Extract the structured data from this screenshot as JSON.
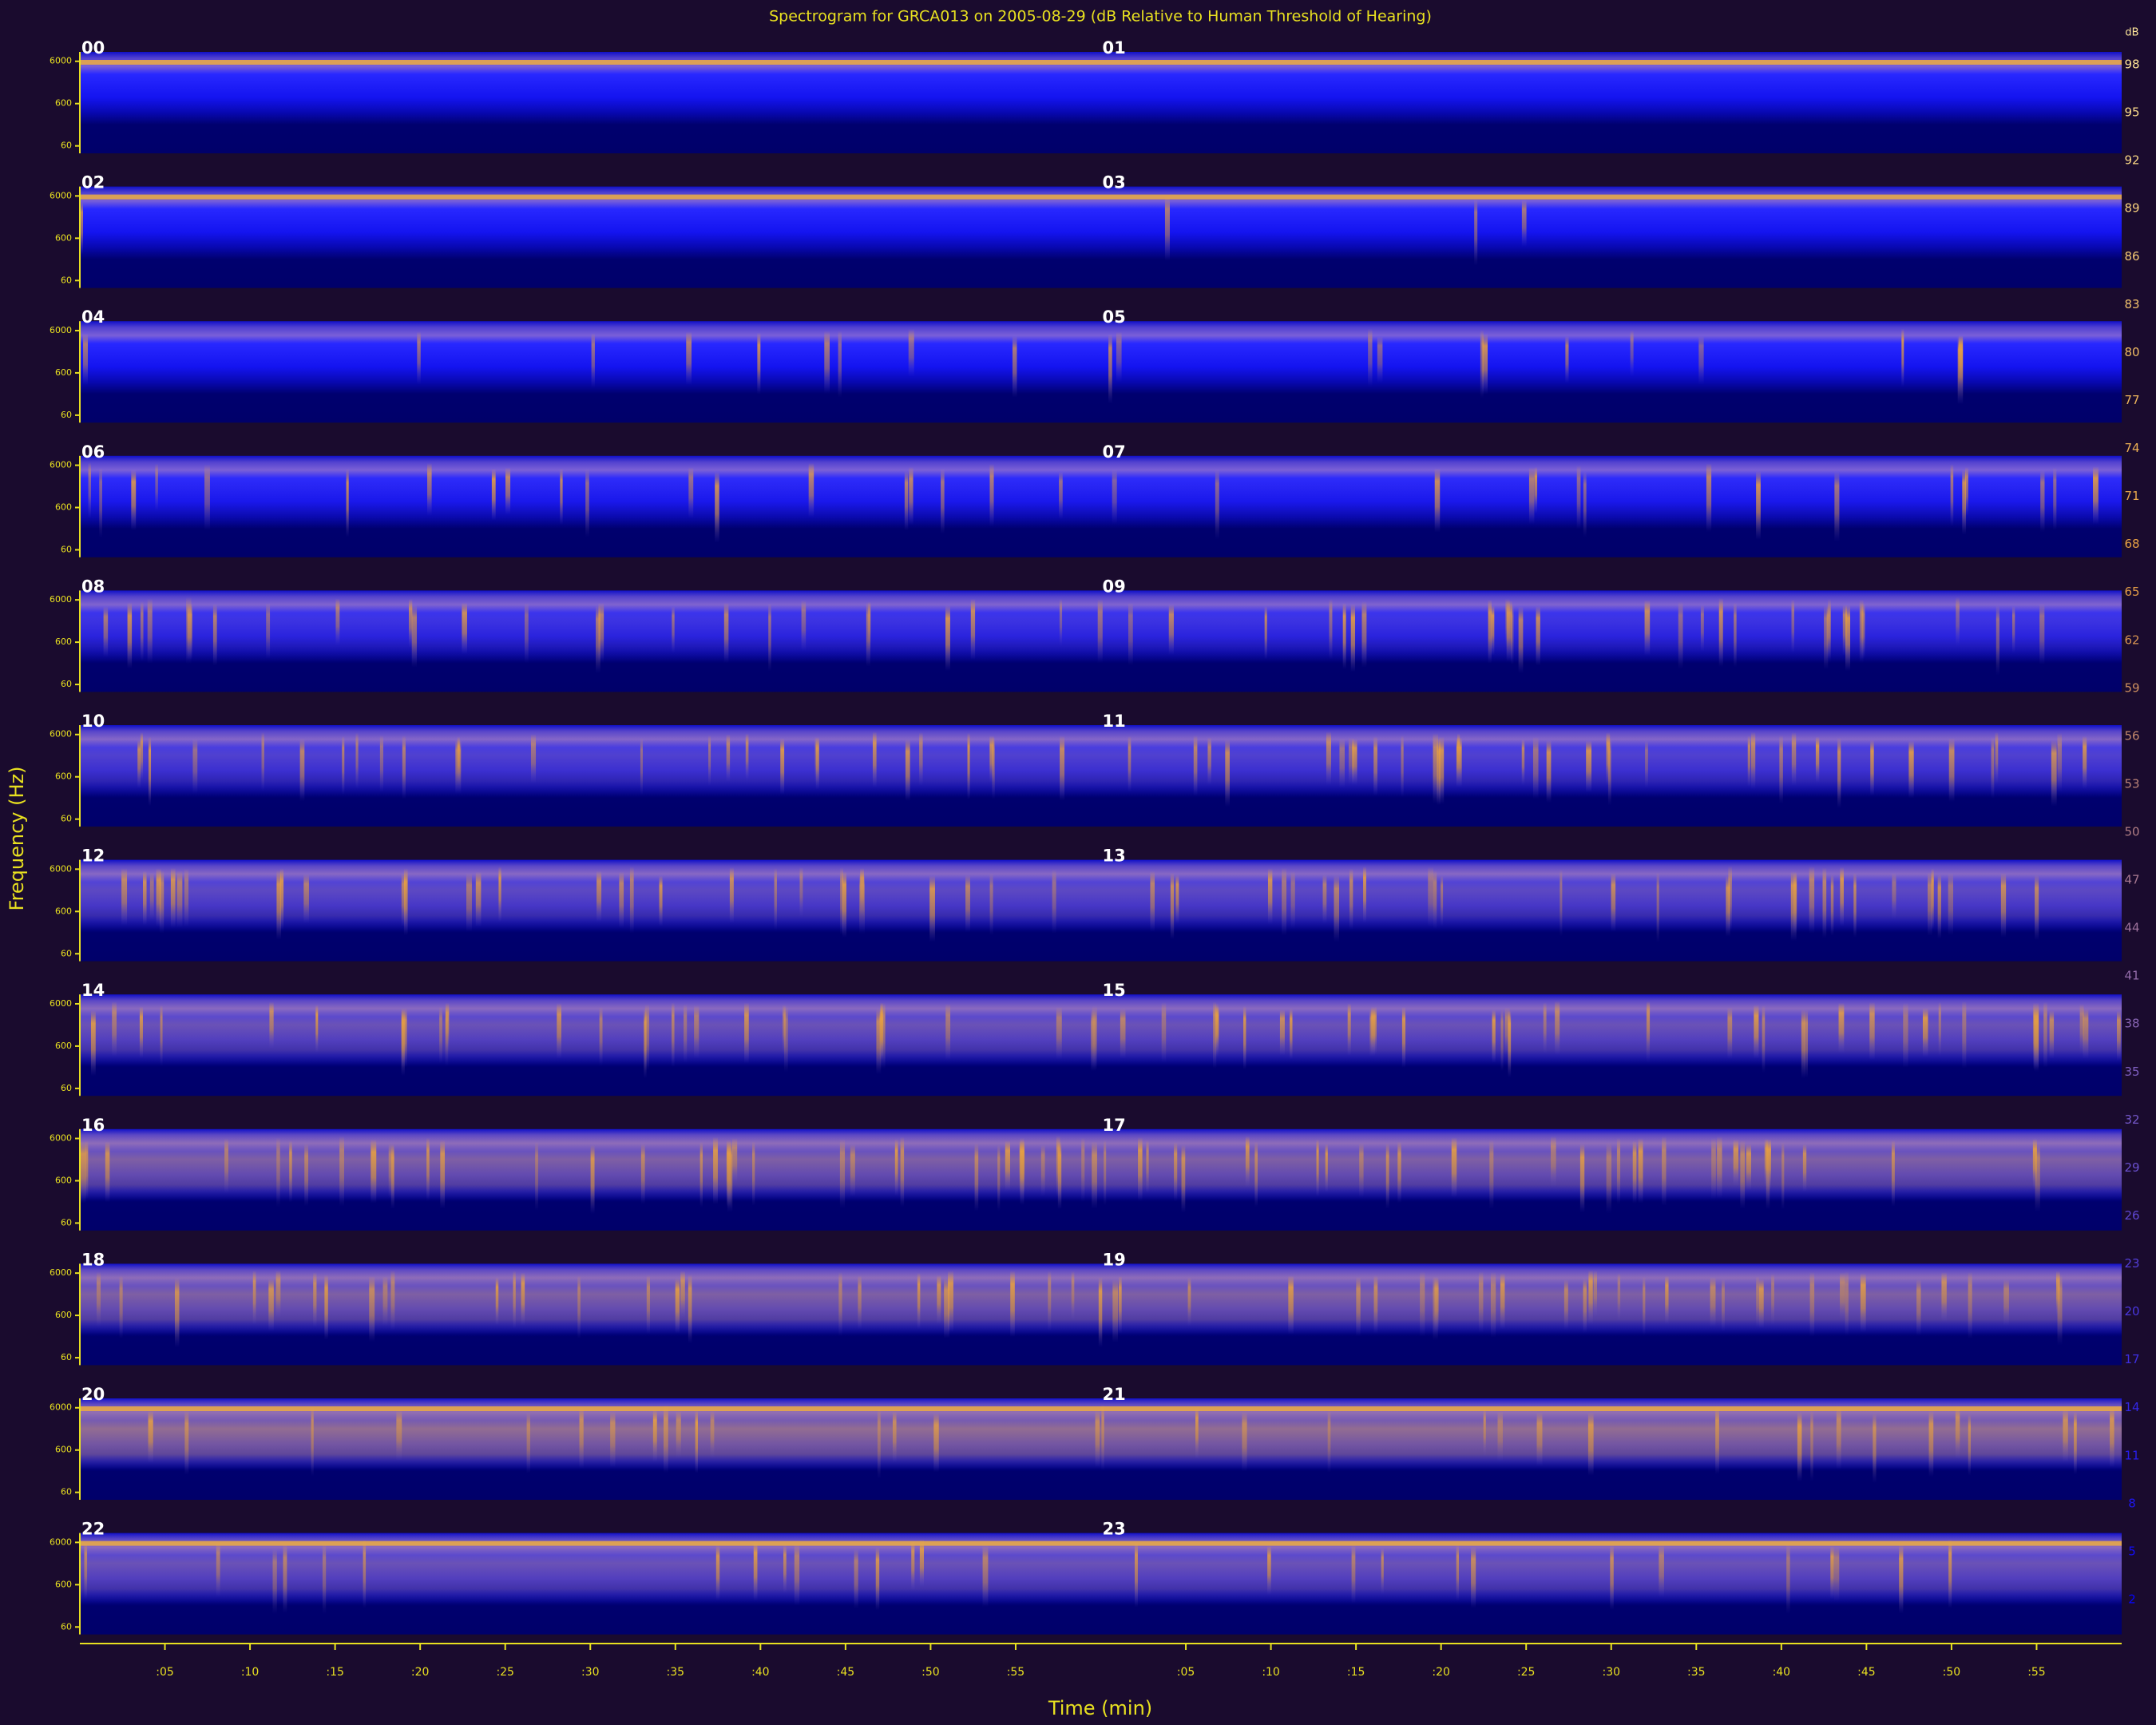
{
  "chart_data": {
    "type": "spectrogram",
    "title": "Spectrogram for GRCA013 on 2005-08-29 (dB Relative to Human Threshold of Hearing)",
    "xlabel": "Time (min)",
    "ylabel": "Frequency (Hz)",
    "hours": [
      "00",
      "01",
      "02",
      "03",
      "04",
      "05",
      "06",
      "07",
      "08",
      "09",
      "10",
      "11",
      "12",
      "13",
      "14",
      "15",
      "16",
      "17",
      "18",
      "19",
      "20",
      "21",
      "22",
      "23"
    ],
    "xlim": [
      0,
      60
    ],
    "xticks": [
      {
        "value": 5,
        "label": ":05"
      },
      {
        "value": 10,
        "label": ":10"
      },
      {
        "value": 15,
        "label": ":15"
      },
      {
        "value": 20,
        "label": ":20"
      },
      {
        "value": 25,
        "label": ":25"
      },
      {
        "value": 30,
        "label": ":30"
      },
      {
        "value": 35,
        "label": ":35"
      },
      {
        "value": 40,
        "label": ":40"
      },
      {
        "value": 45,
        "label": ":45"
      },
      {
        "value": 50,
        "label": ":50"
      },
      {
        "value": 55,
        "label": ":55"
      }
    ],
    "ylim": [
      40,
      10000
    ],
    "yscale": "log",
    "yticks": [
      6000,
      600,
      60
    ],
    "colorbar_label": "dB",
    "clim": [
      0,
      100
    ],
    "cticks": [
      98,
      95,
      92,
      89,
      86,
      83,
      80,
      77,
      74,
      71,
      68,
      65,
      62,
      59,
      56,
      53,
      50,
      47,
      44,
      41,
      38,
      35,
      32,
      29,
      26,
      23,
      20,
      17,
      14,
      11,
      8,
      5,
      2
    ],
    "colormap": [
      "#00005a",
      "#0000ff",
      "#7a5cc8",
      "#e8a040",
      "#ffe89a"
    ]
  }
}
